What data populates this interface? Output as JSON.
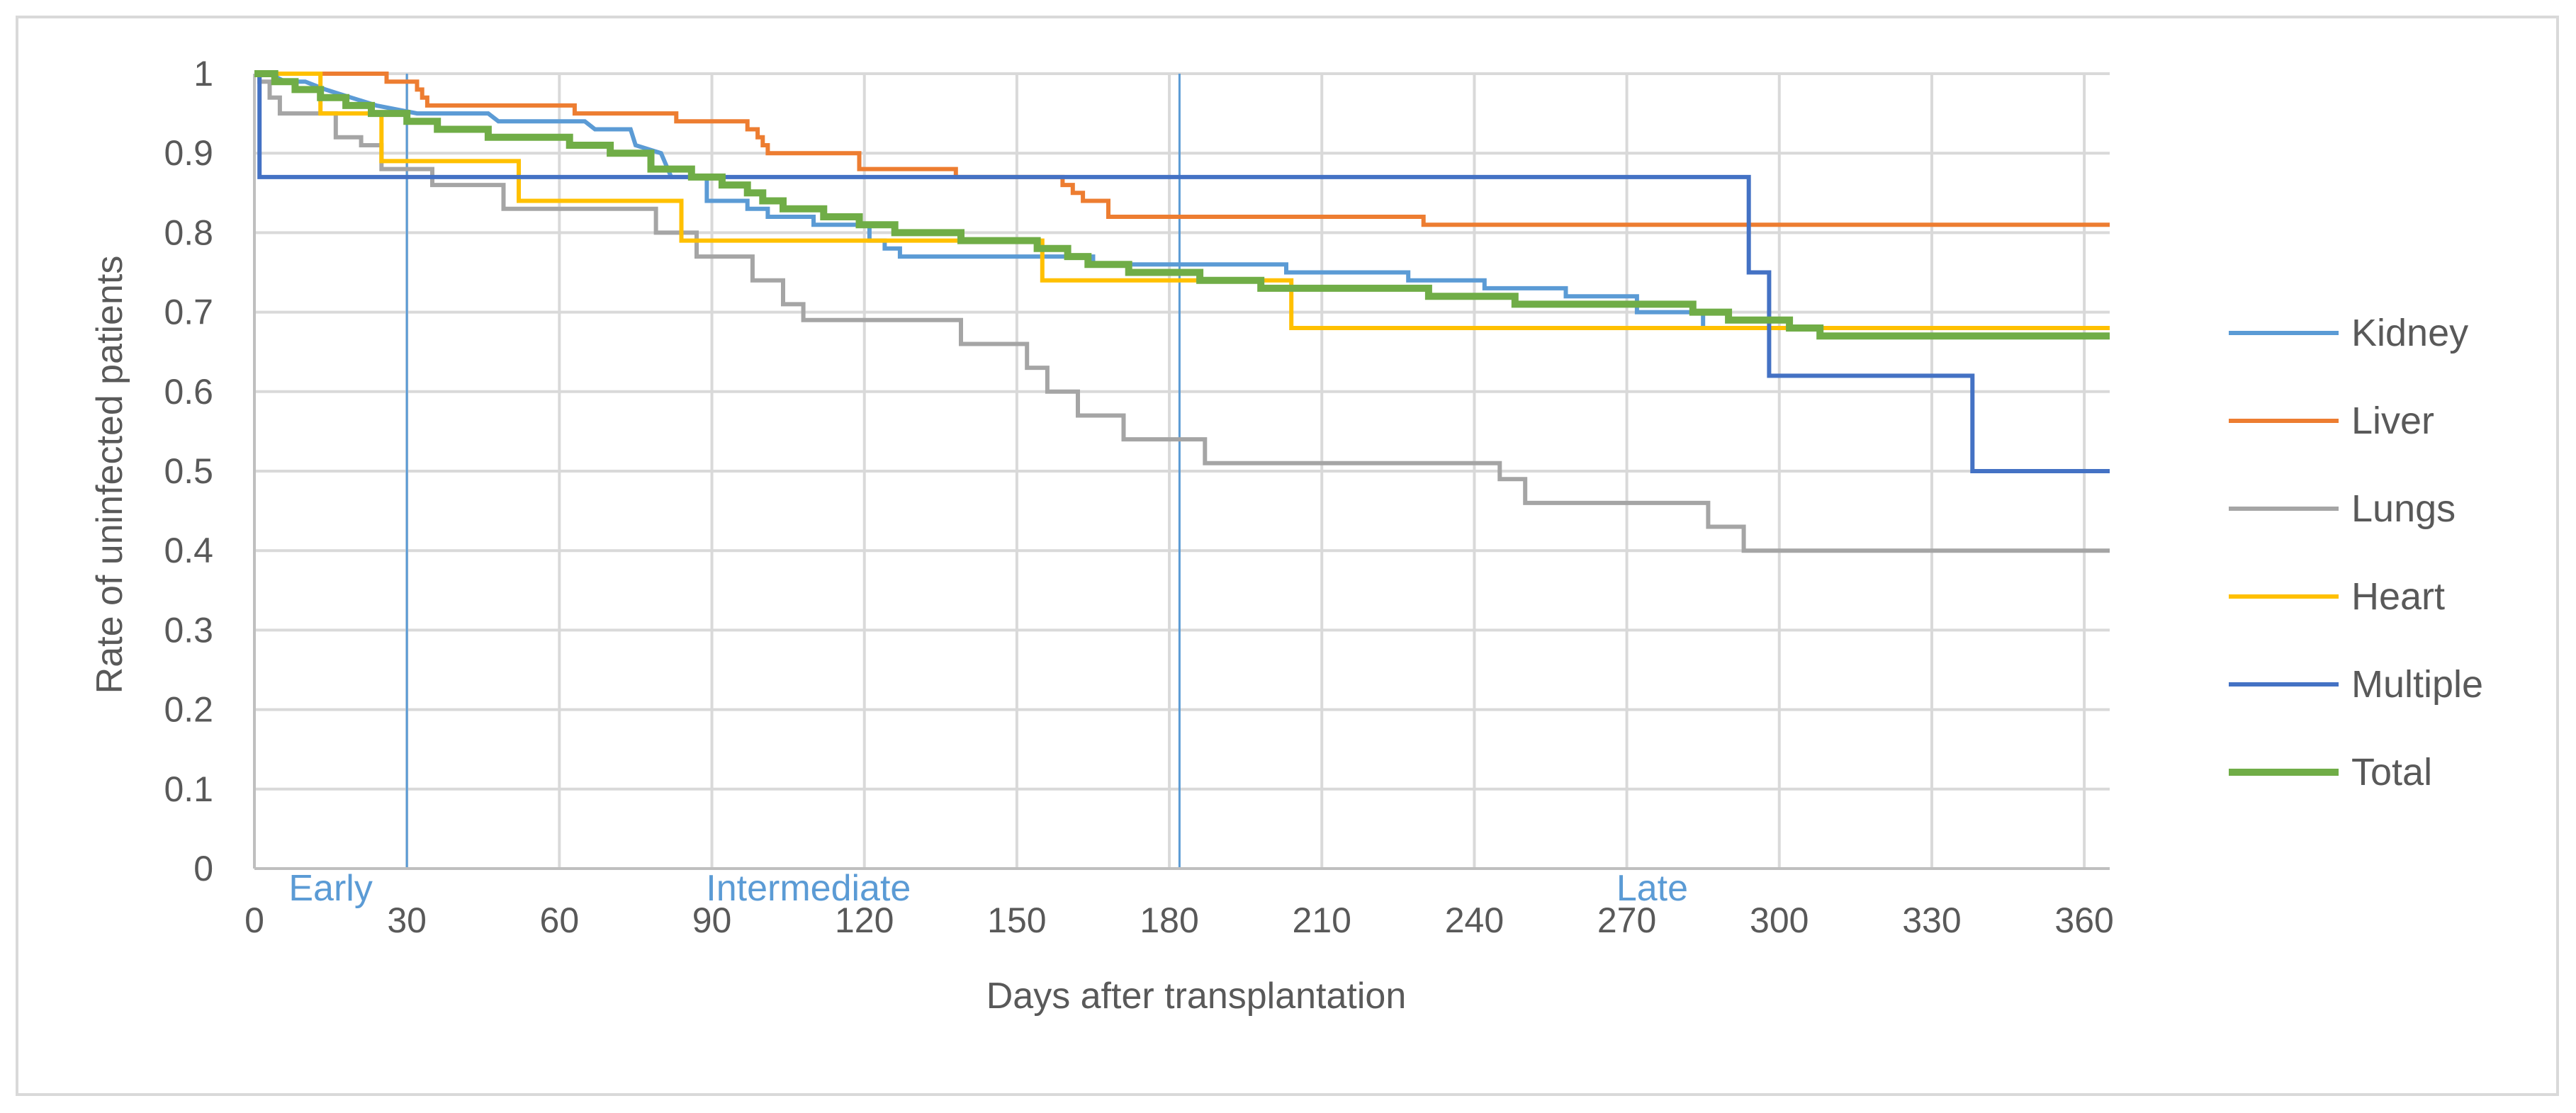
{
  "chart_data": {
    "type": "line",
    "step": true,
    "title": "",
    "xlabel": "Days after transplantation",
    "ylabel": "Rate of uninfected patients",
    "xlim": [
      0,
      365
    ],
    "ylim": [
      0,
      1
    ],
    "xticks": [
      0,
      30,
      60,
      90,
      120,
      150,
      180,
      210,
      240,
      270,
      300,
      330,
      360
    ],
    "yticks": [
      0,
      0.1,
      0.2,
      0.3,
      0.4,
      0.5,
      0.6,
      0.7,
      0.8,
      0.9,
      1
    ],
    "ytick_labels": [
      "0",
      "0.1",
      "0.2",
      "0.3",
      "0.4",
      "0.5",
      "0.6",
      "0.7",
      "0.8",
      "0.9",
      "1"
    ],
    "grid": true,
    "legend_position": "right",
    "phase_lines": [
      30,
      182
    ],
    "phase_color": "#5b9bd5",
    "phases": [
      {
        "label": "Early",
        "x": 15
      },
      {
        "label": "Intermediate",
        "x": 109
      },
      {
        "label": "Late",
        "x": 275
      }
    ],
    "series": [
      {
        "name": "Kidney",
        "color": "#5b9bd5",
        "points": [
          [
            0,
            1
          ],
          [
            3,
            1
          ],
          [
            6,
            0.99
          ],
          [
            10,
            0.99
          ],
          [
            14,
            0.98
          ],
          [
            19,
            0.97
          ],
          [
            24,
            0.96
          ],
          [
            32,
            0.95
          ],
          [
            46,
            0.95
          ],
          [
            48,
            0.94
          ],
          [
            65,
            0.94
          ],
          [
            67,
            0.93
          ],
          [
            74,
            0.93
          ],
          [
            75,
            0.91
          ],
          [
            80,
            0.9
          ],
          [
            82,
            0.87
          ],
          [
            89,
            0.87
          ],
          [
            89,
            0.84
          ],
          [
            97,
            0.84
          ],
          [
            97,
            0.83
          ],
          [
            101,
            0.83
          ],
          [
            101,
            0.82
          ],
          [
            110,
            0.82
          ],
          [
            110,
            0.81
          ],
          [
            121,
            0.81
          ],
          [
            121,
            0.79
          ],
          [
            124,
            0.79
          ],
          [
            124,
            0.78
          ],
          [
            127,
            0.78
          ],
          [
            127,
            0.77
          ],
          [
            147,
            0.77
          ],
          [
            147,
            0.77
          ],
          [
            165,
            0.77
          ],
          [
            165,
            0.76
          ],
          [
            203,
            0.76
          ],
          [
            203,
            0.75
          ],
          [
            227,
            0.75
          ],
          [
            227,
            0.74
          ],
          [
            242,
            0.74
          ],
          [
            242,
            0.73
          ],
          [
            258,
            0.73
          ],
          [
            258,
            0.72
          ],
          [
            272,
            0.72
          ],
          [
            272,
            0.7
          ],
          [
            285,
            0.7
          ],
          [
            285,
            0.68
          ],
          [
            308,
            0.68
          ],
          [
            308,
            0.67
          ],
          [
            365,
            0.67
          ]
        ]
      },
      {
        "name": "Liver",
        "color": "#ed7d31",
        "points": [
          [
            0,
            1
          ],
          [
            26,
            1
          ],
          [
            26,
            0.99
          ],
          [
            32,
            0.99
          ],
          [
            32,
            0.98
          ],
          [
            33,
            0.98
          ],
          [
            33,
            0.97
          ],
          [
            34,
            0.97
          ],
          [
            34,
            0.96
          ],
          [
            63,
            0.96
          ],
          [
            63,
            0.95
          ],
          [
            83,
            0.95
          ],
          [
            83,
            0.94
          ],
          [
            97,
            0.94
          ],
          [
            97,
            0.93
          ],
          [
            99,
            0.93
          ],
          [
            99,
            0.92
          ],
          [
            100,
            0.92
          ],
          [
            100,
            0.91
          ],
          [
            101,
            0.91
          ],
          [
            101,
            0.9
          ],
          [
            119,
            0.9
          ],
          [
            119,
            0.88
          ],
          [
            138,
            0.88
          ],
          [
            138,
            0.87
          ],
          [
            159,
            0.87
          ],
          [
            159,
            0.86
          ],
          [
            161,
            0.86
          ],
          [
            161,
            0.85
          ],
          [
            163,
            0.85
          ],
          [
            163,
            0.84
          ],
          [
            168,
            0.84
          ],
          [
            168,
            0.82
          ],
          [
            230,
            0.82
          ],
          [
            230,
            0.81
          ],
          [
            365,
            0.81
          ]
        ]
      },
      {
        "name": "Lungs",
        "color": "#a5a5a5",
        "points": [
          [
            0,
            1
          ],
          [
            1,
            1
          ],
          [
            1,
            0.99
          ],
          [
            3,
            0.99
          ],
          [
            3,
            0.97
          ],
          [
            5,
            0.97
          ],
          [
            5,
            0.95
          ],
          [
            16,
            0.95
          ],
          [
            16,
            0.92
          ],
          [
            21,
            0.92
          ],
          [
            21,
            0.91
          ],
          [
            25,
            0.91
          ],
          [
            25,
            0.88
          ],
          [
            35,
            0.88
          ],
          [
            35,
            0.86
          ],
          [
            49,
            0.86
          ],
          [
            49,
            0.83
          ],
          [
            79,
            0.83
          ],
          [
            79,
            0.8
          ],
          [
            87,
            0.8
          ],
          [
            87,
            0.77
          ],
          [
            98,
            0.77
          ],
          [
            98,
            0.74
          ],
          [
            104,
            0.74
          ],
          [
            104,
            0.71
          ],
          [
            108,
            0.71
          ],
          [
            108,
            0.69
          ],
          [
            139,
            0.69
          ],
          [
            139,
            0.66
          ],
          [
            152,
            0.66
          ],
          [
            152,
            0.63
          ],
          [
            156,
            0.63
          ],
          [
            156,
            0.6
          ],
          [
            162,
            0.6
          ],
          [
            162,
            0.57
          ],
          [
            171,
            0.57
          ],
          [
            171,
            0.54
          ],
          [
            187,
            0.54
          ],
          [
            187,
            0.51
          ],
          [
            245,
            0.51
          ],
          [
            245,
            0.49
          ],
          [
            250,
            0.49
          ],
          [
            250,
            0.46
          ],
          [
            286,
            0.46
          ],
          [
            286,
            0.43
          ],
          [
            293,
            0.43
          ],
          [
            293,
            0.4
          ],
          [
            365,
            0.4
          ]
        ]
      },
      {
        "name": "Heart",
        "color": "#ffc000",
        "points": [
          [
            0,
            1
          ],
          [
            13,
            1
          ],
          [
            13,
            0.95
          ],
          [
            25,
            0.95
          ],
          [
            25,
            0.89
          ],
          [
            52,
            0.89
          ],
          [
            52,
            0.84
          ],
          [
            84,
            0.84
          ],
          [
            84,
            0.79
          ],
          [
            155,
            0.79
          ],
          [
            155,
            0.74
          ],
          [
            204,
            0.74
          ],
          [
            204,
            0.68
          ],
          [
            365,
            0.68
          ]
        ]
      },
      {
        "name": "Multiple",
        "color": "#4472c4",
        "points": [
          [
            0,
            1
          ],
          [
            1,
            1
          ],
          [
            1,
            0.87
          ],
          [
            294,
            0.87
          ],
          [
            294,
            0.75
          ],
          [
            298,
            0.75
          ],
          [
            298,
            0.62
          ],
          [
            338,
            0.62
          ],
          [
            338,
            0.5
          ],
          [
            365,
            0.5
          ]
        ]
      },
      {
        "name": "Total",
        "color": "#70ad47",
        "points": [
          [
            0,
            1
          ],
          [
            4,
            1
          ],
          [
            4,
            0.99
          ],
          [
            8,
            0.99
          ],
          [
            8,
            0.98
          ],
          [
            13,
            0.98
          ],
          [
            13,
            0.97
          ],
          [
            18,
            0.97
          ],
          [
            18,
            0.96
          ],
          [
            23,
            0.96
          ],
          [
            23,
            0.95
          ],
          [
            30,
            0.95
          ],
          [
            30,
            0.94
          ],
          [
            36,
            0.94
          ],
          [
            36,
            0.93
          ],
          [
            46,
            0.93
          ],
          [
            46,
            0.92
          ],
          [
            62,
            0.92
          ],
          [
            62,
            0.91
          ],
          [
            70,
            0.91
          ],
          [
            70,
            0.9
          ],
          [
            78,
            0.9
          ],
          [
            78,
            0.88
          ],
          [
            86,
            0.88
          ],
          [
            86,
            0.87
          ],
          [
            92,
            0.87
          ],
          [
            92,
            0.86
          ],
          [
            97,
            0.86
          ],
          [
            97,
            0.85
          ],
          [
            100,
            0.85
          ],
          [
            100,
            0.84
          ],
          [
            104,
            0.84
          ],
          [
            104,
            0.83
          ],
          [
            112,
            0.83
          ],
          [
            112,
            0.82
          ],
          [
            119,
            0.82
          ],
          [
            119,
            0.81
          ],
          [
            126,
            0.81
          ],
          [
            126,
            0.8
          ],
          [
            139,
            0.8
          ],
          [
            139,
            0.79
          ],
          [
            154,
            0.79
          ],
          [
            154,
            0.78
          ],
          [
            160,
            0.78
          ],
          [
            160,
            0.77
          ],
          [
            164,
            0.77
          ],
          [
            164,
            0.76
          ],
          [
            172,
            0.76
          ],
          [
            172,
            0.75
          ],
          [
            186,
            0.75
          ],
          [
            186,
            0.74
          ],
          [
            198,
            0.74
          ],
          [
            198,
            0.73
          ],
          [
            231,
            0.73
          ],
          [
            231,
            0.72
          ],
          [
            248,
            0.72
          ],
          [
            248,
            0.71
          ],
          [
            283,
            0.71
          ],
          [
            283,
            0.7
          ],
          [
            290,
            0.7
          ],
          [
            290,
            0.69
          ],
          [
            302,
            0.69
          ],
          [
            302,
            0.68
          ],
          [
            308,
            0.68
          ],
          [
            308,
            0.67
          ],
          [
            365,
            0.67
          ]
        ]
      }
    ]
  }
}
